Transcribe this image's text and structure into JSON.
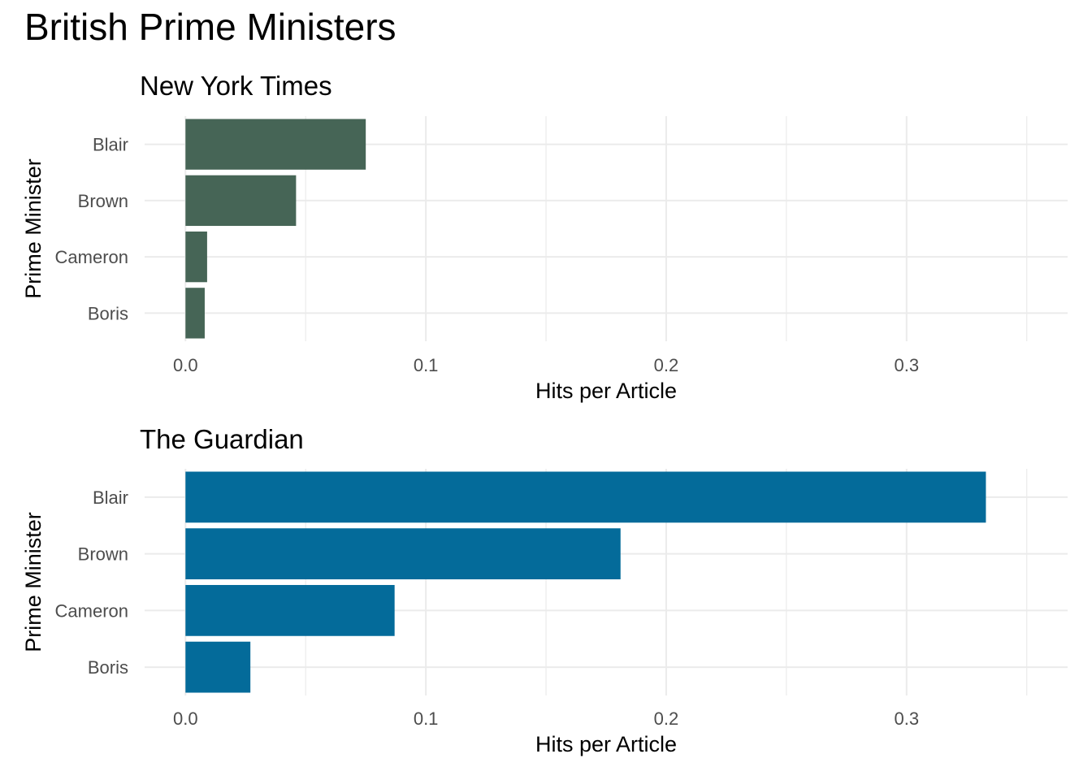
{
  "title": "British Prime Ministers",
  "colors": {
    "nyt": "#466556",
    "guardian": "#046b9a"
  },
  "chart_data": [
    {
      "type": "bar",
      "orientation": "horizontal",
      "title": "New York Times",
      "xlabel": "Hits per Article",
      "ylabel": "Prime Minister",
      "categories": [
        "Blair",
        "Brown",
        "Cameron",
        "Boris"
      ],
      "values": [
        0.075,
        0.046,
        0.009,
        0.008
      ],
      "xlim": [
        -0.017,
        0.367
      ],
      "xticks": [
        0.0,
        0.1,
        0.2,
        0.3
      ],
      "xtick_labels": [
        "0.0",
        "0.1",
        "0.2",
        "0.3"
      ],
      "grid": true,
      "color": "#466556"
    },
    {
      "type": "bar",
      "orientation": "horizontal",
      "title": "The Guardian",
      "xlabel": "Hits per Article",
      "ylabel": "Prime Minister",
      "categories": [
        "Blair",
        "Brown",
        "Cameron",
        "Boris"
      ],
      "values": [
        0.333,
        0.181,
        0.087,
        0.027
      ],
      "xlim": [
        -0.017,
        0.367
      ],
      "xticks": [
        0.0,
        0.1,
        0.2,
        0.3
      ],
      "xtick_labels": [
        "0.0",
        "0.1",
        "0.2",
        "0.3"
      ],
      "grid": true,
      "color": "#046b9a"
    }
  ]
}
